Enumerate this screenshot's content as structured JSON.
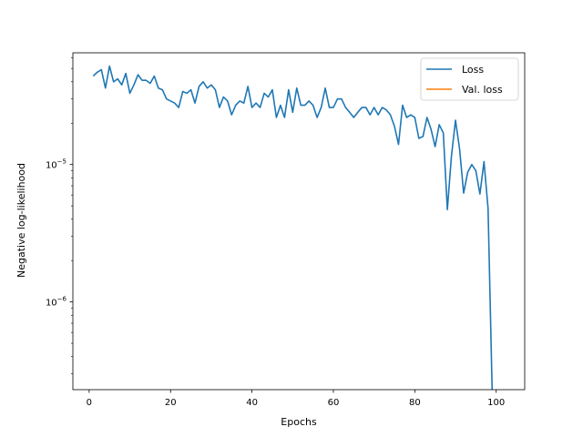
{
  "chart_data": {
    "type": "line",
    "xlabel": "Epochs",
    "ylabel": "Negative log-likelihood",
    "yscale": "log",
    "xlim": [
      -4,
      107
    ],
    "ylim": [
      2.3e-07,
      6.5e-05
    ],
    "x_ticks": [
      0,
      20,
      40,
      60,
      80,
      100
    ],
    "x_tick_labels": [
      "0",
      "20",
      "40",
      "60",
      "80",
      "100"
    ],
    "y_ticks": [
      {
        "value": 1e-06,
        "base": "10",
        "exp": "−6"
      },
      {
        "value": 1e-05,
        "base": "10",
        "exp": "−5"
      }
    ],
    "legend_position": "top-right",
    "series": [
      {
        "name": "Loss",
        "color": "#1f77b4",
        "x": [
          1,
          2,
          3,
          4,
          5,
          6,
          7,
          8,
          9,
          10,
          11,
          12,
          13,
          14,
          15,
          16,
          17,
          18,
          19,
          20,
          21,
          22,
          23,
          24,
          25,
          26,
          27,
          28,
          29,
          30,
          31,
          32,
          33,
          34,
          35,
          36,
          37,
          38,
          39,
          40,
          41,
          42,
          43,
          44,
          45,
          46,
          47,
          48,
          49,
          50,
          51,
          52,
          53,
          54,
          55,
          56,
          57,
          58,
          59,
          60,
          61,
          62,
          63,
          64,
          65,
          66,
          67,
          68,
          69,
          70,
          71,
          72,
          73,
          74,
          75,
          76,
          77,
          78,
          79,
          80,
          81,
          82,
          83,
          84,
          85,
          86,
          87,
          88,
          89,
          90,
          91,
          92,
          93,
          94,
          95,
          96,
          97,
          98,
          99
        ],
        "y": [
          4.4e-05,
          4.7e-05,
          4.9e-05,
          3.6e-05,
          5.2e-05,
          4e-05,
          4.2e-05,
          3.8e-05,
          4.6e-05,
          3.3e-05,
          3.8e-05,
          4.5e-05,
          4.1e-05,
          4.1e-05,
          3.9e-05,
          4.4e-05,
          3.6e-05,
          3.5e-05,
          3e-05,
          2.9e-05,
          2.8e-05,
          2.6e-05,
          3.4e-05,
          3.3e-05,
          3.5e-05,
          2.8e-05,
          3.7e-05,
          4e-05,
          3.6e-05,
          3.8e-05,
          3.5e-05,
          2.6e-05,
          3.1e-05,
          2.9e-05,
          2.3e-05,
          2.7e-05,
          2.9e-05,
          2.8e-05,
          3.7e-05,
          2.6e-05,
          2.8e-05,
          2.6e-05,
          3.3e-05,
          3.1e-05,
          3.5e-05,
          2.2e-05,
          2.7e-05,
          2.2e-05,
          3.5e-05,
          2.4e-05,
          3.6e-05,
          2.7e-05,
          2.7e-05,
          2.9e-05,
          2.7e-05,
          2.2e-05,
          2.6e-05,
          3.6e-05,
          2.6e-05,
          2.6e-05,
          3e-05,
          3e-05,
          2.6e-05,
          2.4e-05,
          2.2e-05,
          2.4e-05,
          2.6e-05,
          2.6e-05,
          2.3e-05,
          2.6e-05,
          2.3e-05,
          2.6e-05,
          2.5e-05,
          2.3e-05,
          1.9e-05,
          1.4e-05,
          2.7e-05,
          2.2e-05,
          2.3e-05,
          2.2e-05,
          1.55e-05,
          1.6e-05,
          2.2e-05,
          1.8e-05,
          1.35e-05,
          1.95e-05,
          1.7e-05,
          4.7e-06,
          1.15e-05,
          2.1e-05,
          1.3e-05,
          6.2e-06,
          8.8e-06,
          1e-05,
          9e-06,
          6.1e-06,
          1.05e-05,
          4.8e-06,
          2.3e-07
        ]
      },
      {
        "name": "Val. loss",
        "color": "#ff7f0e",
        "x": [],
        "y": []
      }
    ]
  }
}
